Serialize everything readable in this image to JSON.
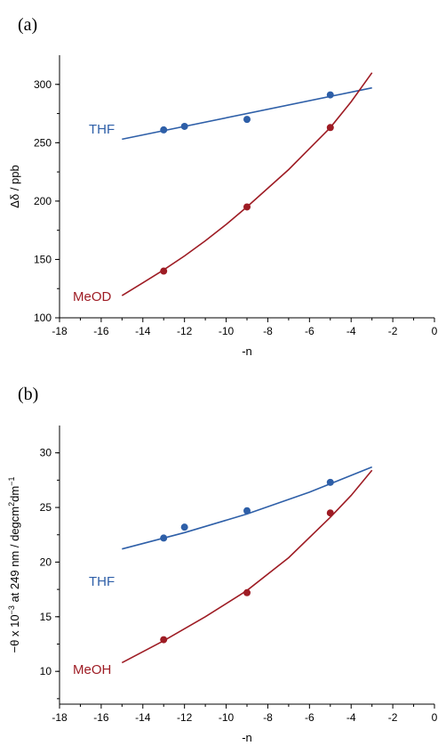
{
  "chart_data": [
    {
      "panel": "(a)",
      "type": "scatter",
      "xlabel": "-n",
      "ylabel": "Δδ / ppb",
      "xlim": [
        -18,
        0
      ],
      "ylim": [
        100,
        300
      ],
      "yaxis_top": 325,
      "xticks": [
        -18,
        -16,
        -14,
        -12,
        -10,
        -8,
        -6,
        -4,
        -2,
        0
      ],
      "yticks": [
        100,
        150,
        200,
        250,
        300
      ],
      "grid": false,
      "series": [
        {
          "name": "THF",
          "color": "#2e5fa8",
          "points": [
            [
              -13,
              261
            ],
            [
              -12,
              264
            ],
            [
              -9,
              270
            ],
            [
              -5,
              291
            ]
          ],
          "fit": [
            [
              -15,
              253
            ],
            [
              -3,
              297
            ]
          ]
        },
        {
          "name": "MeOD",
          "color": "#9e1c24",
          "points": [
            [
              -13,
              140
            ],
            [
              -9,
              195
            ],
            [
              -5,
              263
            ]
          ],
          "fit": [
            [
              -15,
              119
            ],
            [
              -14,
              130
            ],
            [
              -13,
              141
            ],
            [
              -12,
              153
            ],
            [
              -11,
              166
            ],
            [
              -10,
              180
            ],
            [
              -9,
              195
            ],
            [
              -8,
              211
            ],
            [
              -7,
              227
            ],
            [
              -6,
              245
            ],
            [
              -5,
              263
            ],
            [
              -4,
              285
            ],
            [
              -3,
              310
            ]
          ]
        }
      ]
    },
    {
      "panel": "(b)",
      "type": "scatter",
      "xlabel": "-n",
      "ylabel_parts": [
        "−θ x 10",
        "−3",
        " at 249 nm / degcm",
        "2",
        "dm",
        "−1"
      ],
      "xlim": [
        -18,
        0
      ],
      "ylim": [
        7,
        30
      ],
      "yaxis_top": 32.5,
      "xticks": [
        -18,
        -16,
        -14,
        -12,
        -10,
        -8,
        -6,
        -4,
        -2,
        0
      ],
      "yticks": [
        10,
        15,
        20,
        25,
        30
      ],
      "grid": false,
      "series": [
        {
          "name": "THF",
          "color": "#2e5fa8",
          "points": [
            [
              -13,
              22.2
            ],
            [
              -12,
              23.2
            ],
            [
              -9,
              24.7
            ],
            [
              -5,
              27.3
            ]
          ],
          "fit": [
            [
              -15,
              21.2
            ],
            [
              -12,
              22.7
            ],
            [
              -9,
              24.4
            ],
            [
              -6,
              26.4
            ],
            [
              -3,
              28.7
            ]
          ]
        },
        {
          "name": "MeOH",
          "color": "#9e1c24",
          "points": [
            [
              -13,
              12.9
            ],
            [
              -9,
              17.2
            ],
            [
              -5,
              24.5
            ]
          ],
          "fit": [
            [
              -15,
              10.8
            ],
            [
              -13,
              12.8
            ],
            [
              -11,
              15.0
            ],
            [
              -9,
              17.4
            ],
            [
              -7,
              20.4
            ],
            [
              -5,
              24.1
            ],
            [
              -4,
              26.1
            ],
            [
              -3,
              28.4
            ]
          ]
        }
      ]
    }
  ]
}
